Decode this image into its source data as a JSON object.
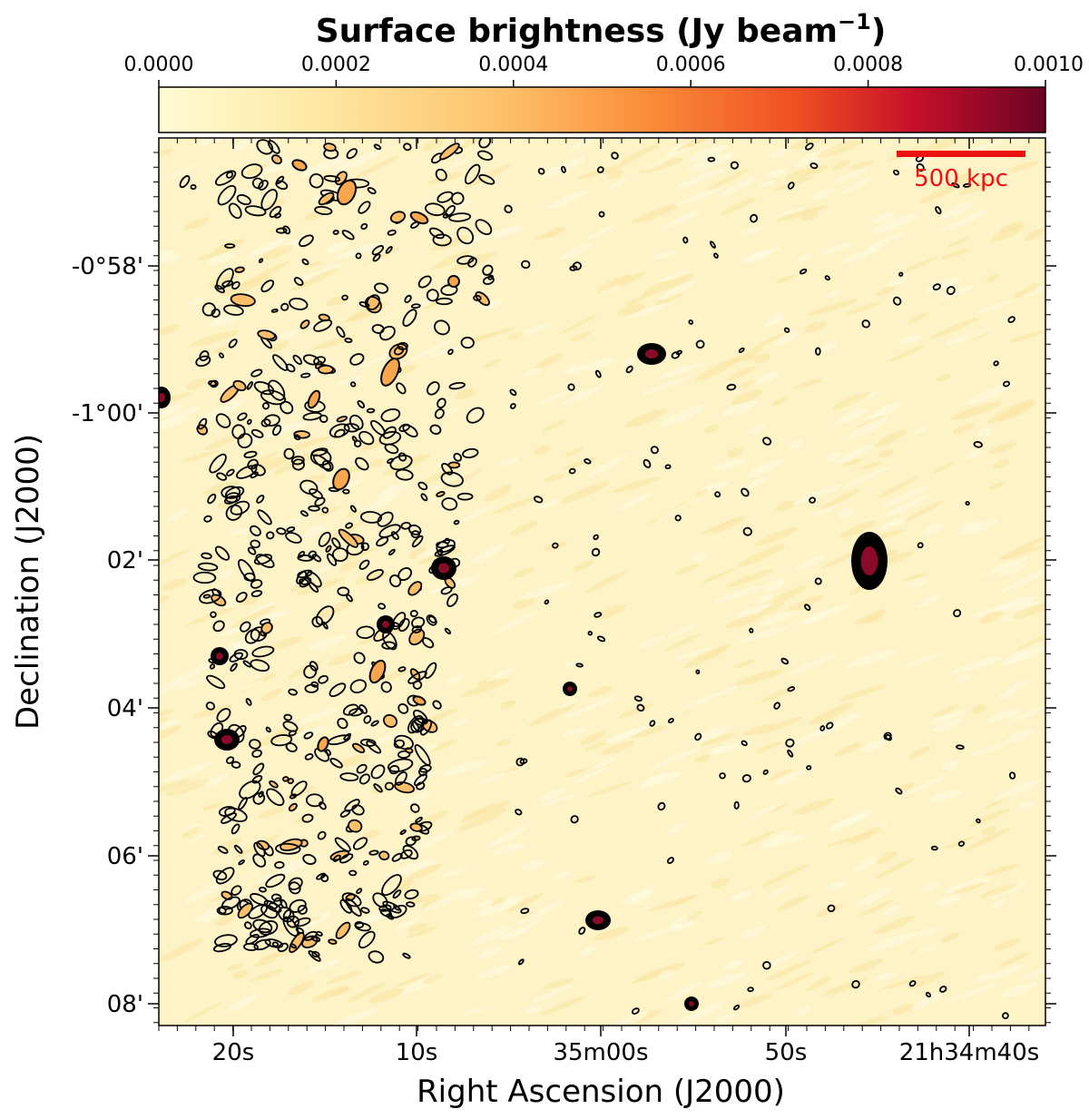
{
  "chart_data": {
    "type": "heatmap",
    "title": "Surface brightness (Jy beam",
    "title_superscript": "−1",
    "title_close": ")",
    "xlabel": "Right Ascension (J2000)",
    "ylabel": "Declination (J2000)",
    "colorbar": {
      "ticks": [
        "0.0000",
        "0.0002",
        "0.0004",
        "0.0006",
        "0.0008",
        "0.0010"
      ],
      "range": [
        0.0,
        0.001
      ],
      "colormap": [
        "#fffbd4",
        "#fee9a6",
        "#fdc36b",
        "#fb8d3a",
        "#ef4f22",
        "#c8102a",
        "#6b0325"
      ]
    },
    "x_ticks": [
      "20s",
      "10s",
      "35m00s",
      "50s",
      "21h34m40s"
    ],
    "y_ticks": [
      "-0°58'",
      "-1°00'",
      "02'",
      "04'",
      "06'",
      "08'"
    ],
    "scale_bar": {
      "label": "500 kpc",
      "color": "#ee1111"
    },
    "background_color": "#fdf3c6",
    "contour_color": "#000000"
  }
}
